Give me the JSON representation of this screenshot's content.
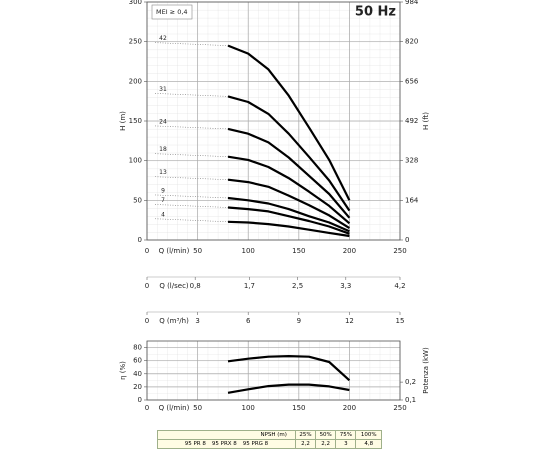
{
  "chart_data": [
    {
      "type": "line",
      "annotations": [
        "MEI ≥ 0,4",
        "50 Hz"
      ],
      "xlabel": "Q (l/min)",
      "ylabel": "H (m)",
      "y2label": "H (ft)",
      "x": [
        80,
        100,
        120,
        140,
        160,
        180,
        200
      ],
      "xlim": [
        0,
        250
      ],
      "xticks": [
        0,
        50,
        100,
        150,
        200,
        250
      ],
      "ylim": [
        0,
        300
      ],
      "yticks": [
        0,
        50,
        100,
        150,
        200,
        250,
        300
      ],
      "y2lim": [
        0,
        984
      ],
      "y2ticks": [
        0,
        164,
        328,
        492,
        656,
        820,
        984
      ],
      "grid": true,
      "series": [
        {
          "name": "42",
          "color": "#000000",
          "values": [
            245,
            235,
            215,
            182,
            142,
            101,
            50
          ]
        },
        {
          "name": "31",
          "color": "#000000",
          "values": [
            181,
            174,
            159,
            134,
            105,
            75,
            37
          ]
        },
        {
          "name": "24",
          "color": "#000000",
          "values": [
            140,
            134,
            123,
            104,
            81,
            58,
            28
          ]
        },
        {
          "name": "18",
          "color": "#000000",
          "values": [
            105,
            101,
            92,
            78,
            61,
            43,
            21
          ]
        },
        {
          "name": "13",
          "color": "#000000",
          "values": [
            76,
            73,
            67,
            56,
            44,
            31,
            15
          ]
        },
        {
          "name": "9",
          "color": "#000000",
          "values": [
            53,
            50,
            46,
            39,
            30,
            22,
            11
          ]
        },
        {
          "name": "7",
          "color": "#000000",
          "values": [
            41,
            39,
            36,
            30,
            24,
            17,
            8
          ]
        },
        {
          "name": "4",
          "color": "#000000",
          "values": [
            23,
            22,
            20,
            17,
            13,
            9,
            5
          ]
        }
      ]
    },
    {
      "type": "axis",
      "xlabel": "Q (l/sec)",
      "xlim": [
        0,
        4.2
      ],
      "xticks": [
        0,
        {
          "value": 0.8,
          "label": "0,8"
        },
        {
          "value": 1.7,
          "label": "1,7"
        },
        {
          "value": 2.5,
          "label": "2,5"
        },
        {
          "value": 3.3,
          "label": "3,3"
        },
        {
          "value": 4.2,
          "label": "4,2"
        }
      ]
    },
    {
      "type": "axis",
      "xlabel": "Q (m³/h)",
      "xlim": [
        0,
        15
      ],
      "xticks": [
        0,
        3,
        6,
        9,
        12,
        15
      ]
    },
    {
      "type": "line",
      "xlabel": "Q (l/min)",
      "ylabel": "η (%)",
      "y2label": "Potenza (kW)",
      "x": [
        80,
        100,
        120,
        140,
        160,
        180,
        200
      ],
      "xlim": [
        0,
        250
      ],
      "xticks": [
        0,
        50,
        100,
        150,
        200,
        250
      ],
      "ylim": [
        0,
        90
      ],
      "yticks": [
        0,
        20,
        40,
        60,
        80
      ],
      "y2lim": [
        0.1,
        0.43
      ],
      "y2ticks": [
        {
          "value": 0.1,
          "label": "0,1"
        },
        {
          "value": 0.2,
          "label": "0,2"
        }
      ],
      "grid": true,
      "series": [
        {
          "color": "#000000",
          "values": [
            59,
            63,
            66,
            67,
            66,
            58,
            30
          ]
        },
        {
          "color": "#000000",
          "axis": "y2",
          "values": [
            0.14,
            0.16,
            0.178,
            0.186,
            0.186,
            0.176,
            0.156
          ]
        }
      ]
    }
  ],
  "table": {
    "header": [
      "NPSH (m)",
      "25%",
      "50%",
      "75%",
      "100%"
    ],
    "models": [
      "95 PR 8",
      "95 PRX 8",
      "95 PRG 8"
    ],
    "values": [
      "2,2",
      "2,2",
      "3",
      "4,8"
    ]
  }
}
